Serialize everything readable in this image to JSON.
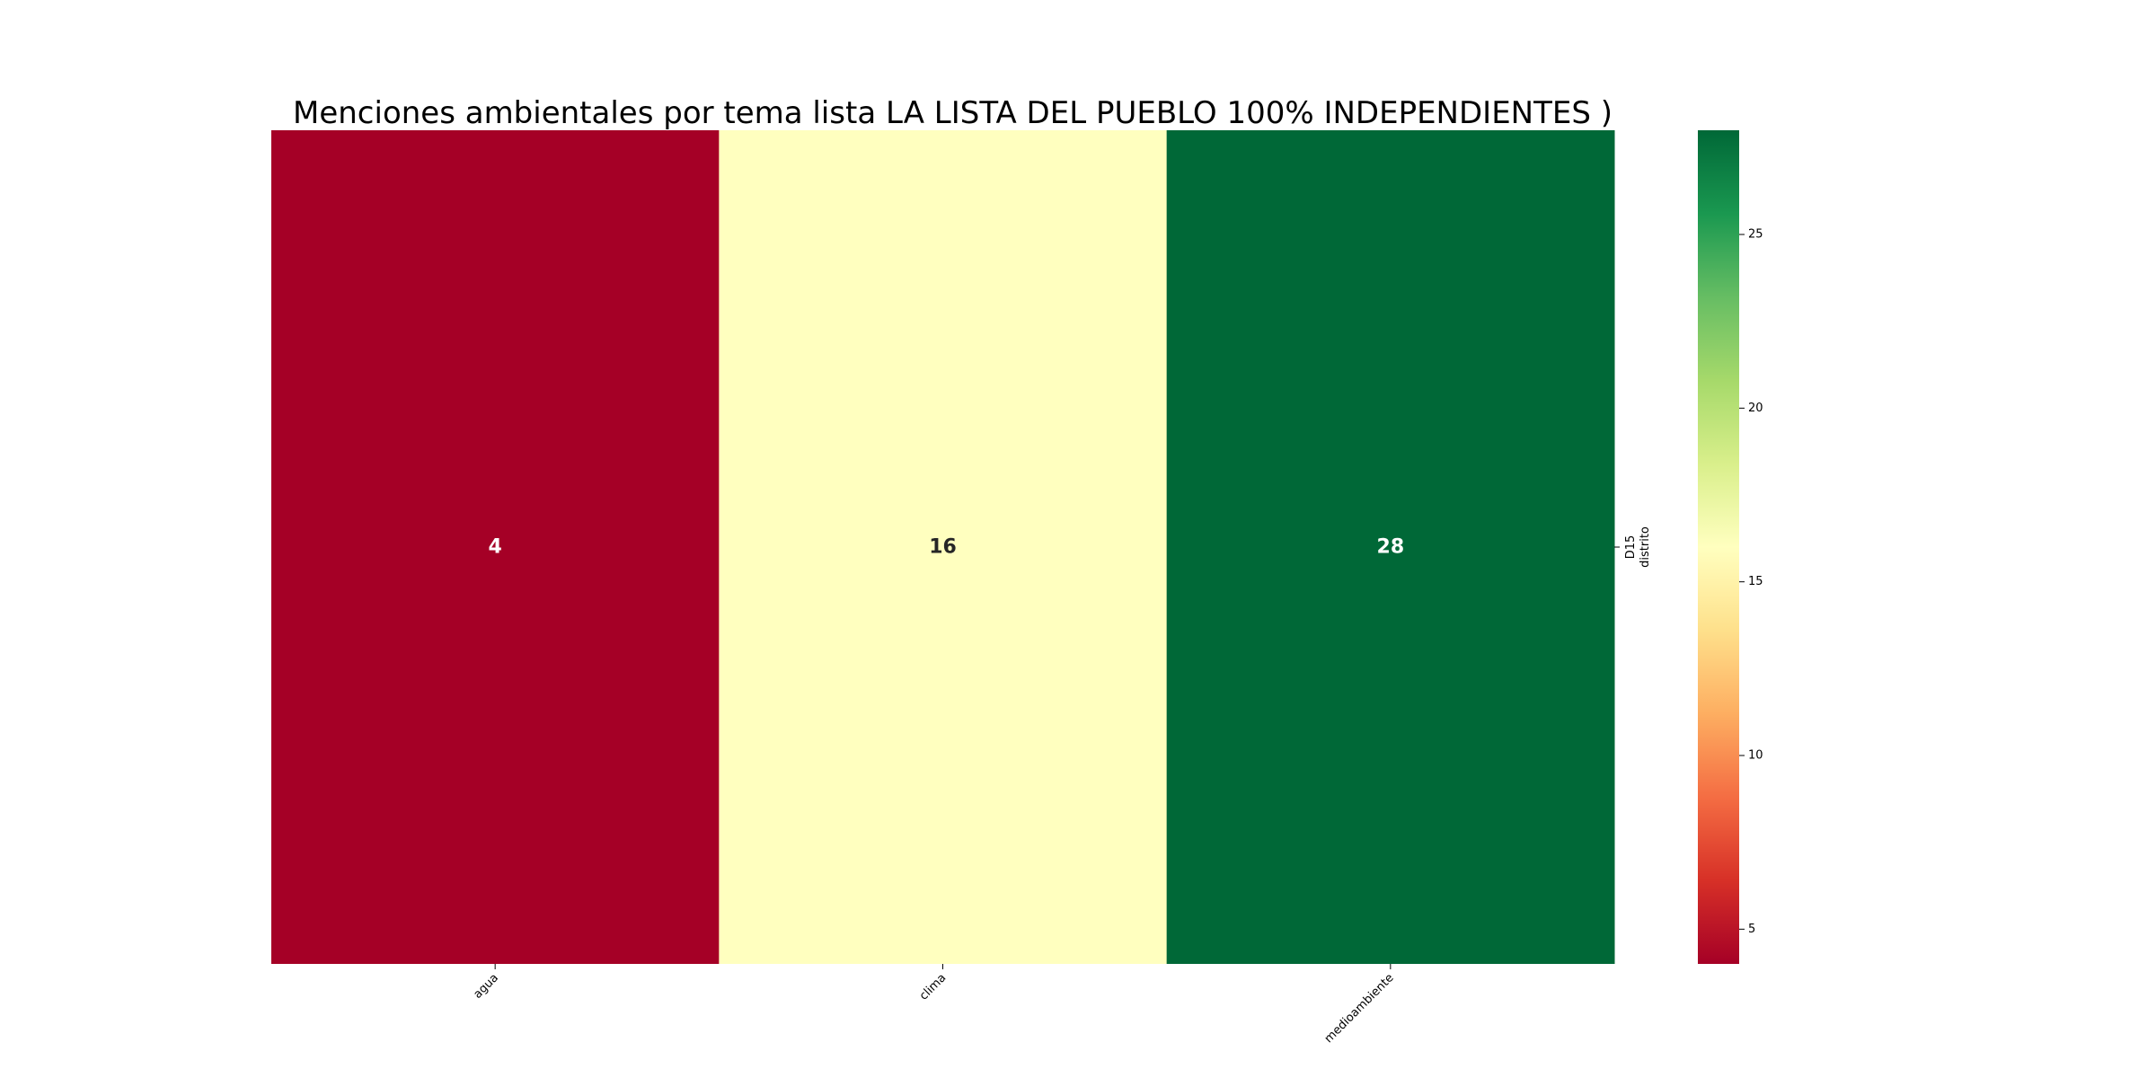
{
  "chart_data": {
    "type": "heatmap",
    "title": "Menciones ambientales por tema lista LA LISTA DEL PUEBLO 100% INDEPENDIENTES )",
    "xlabel": "",
    "ylabel": "distrito",
    "x_categories": [
      "agua",
      "clima",
      "medioambiente"
    ],
    "y_categories": [
      "D15"
    ],
    "values": [
      [
        4,
        16,
        28
      ]
    ],
    "colormap": "RdYlGn",
    "colorbar": {
      "range": [
        4,
        28
      ],
      "ticks": [
        5,
        10,
        15,
        20,
        25
      ]
    },
    "annotations": true
  }
}
